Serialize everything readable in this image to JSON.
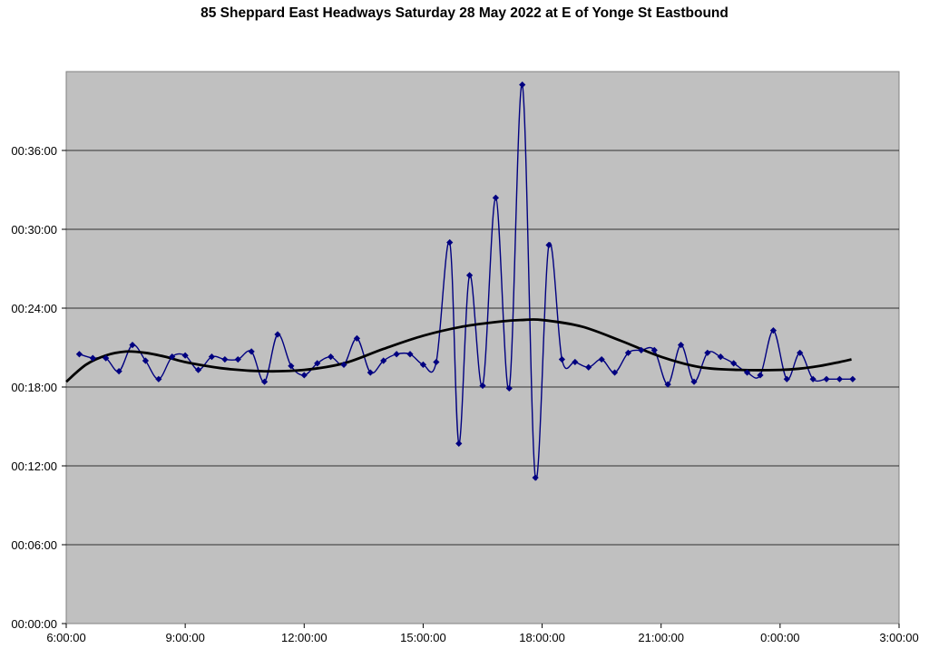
{
  "chart_data": {
    "type": "line",
    "title": "85 Sheppard East Headways Saturday 28 May 2022 at E of Yonge St Eastbound",
    "xlabel": "",
    "ylabel": "",
    "x_unit": "hours of day (24h clock; values above 24 are after midnight)",
    "y_unit": "minutes",
    "xlim": [
      6,
      27
    ],
    "ylim": [
      0,
      42
    ],
    "x_tick_labels": [
      "6:00:00",
      "9:00:00",
      "12:00:00",
      "15:00:00",
      "18:00:00",
      "21:00:00",
      "0:00:00",
      "3:00:00"
    ],
    "y_tick_labels": [
      "00:00:00",
      "00:06:00",
      "00:12:00",
      "00:18:00",
      "00:24:00",
      "00:30:00",
      "00:36:00"
    ],
    "grid": "horizontal",
    "legend": "none",
    "colors": {
      "series": "#000080",
      "trend": "#000000",
      "plot_background": "#c0c0c0"
    },
    "series": [
      {
        "x": [
          6.33,
          6.67,
          7.0,
          7.33,
          7.67,
          8.0,
          8.33,
          8.67,
          9.0,
          9.33,
          9.67,
          10.0,
          10.33,
          10.67,
          11.0,
          11.33,
          11.67,
          12.0,
          12.33,
          12.67,
          13.0,
          13.33,
          13.67,
          14.0,
          14.33,
          14.67,
          15.0,
          15.33,
          15.67,
          15.9,
          16.17,
          16.5,
          16.83,
          17.17,
          17.5,
          17.83,
          18.17,
          18.5,
          18.83,
          19.17,
          19.5,
          19.83,
          20.17,
          20.5,
          20.83,
          21.17,
          21.5,
          21.83,
          22.17,
          22.5,
          22.83,
          23.17,
          23.5,
          23.83,
          24.17,
          24.5,
          24.83,
          25.17,
          25.5,
          25.83
        ],
        "values": [
          20.5,
          20.2,
          20.2,
          19.2,
          21.2,
          20.0,
          18.6,
          20.3,
          20.4,
          19.3,
          20.3,
          20.1,
          20.1,
          20.7,
          18.4,
          22.0,
          19.6,
          18.9,
          19.8,
          20.3,
          19.7,
          21.7,
          19.1,
          20.0,
          20.5,
          20.5,
          19.7,
          19.9,
          29.0,
          13.7,
          26.5,
          18.1,
          32.4,
          17.9,
          41.0,
          11.1,
          28.8,
          20.1,
          19.9,
          19.5,
          20.1,
          19.1,
          20.6,
          20.8,
          20.8,
          18.2,
          21.2,
          18.4,
          20.6,
          20.3,
          19.8,
          19.1,
          18.9,
          22.3,
          18.6,
          20.6,
          18.6,
          18.6,
          18.6,
          18.6
        ]
      }
    ],
    "trendline": {
      "x": [
        6.0,
        6.5,
        7.0,
        7.5,
        8.0,
        8.5,
        9.0,
        10.0,
        11.0,
        12.0,
        13.0,
        14.0,
        15.0,
        16.0,
        17.0,
        17.5,
        18.0,
        19.0,
        20.0,
        21.0,
        22.0,
        23.0,
        24.0,
        24.5,
        25.0,
        25.5,
        25.8
      ],
      "values": [
        18.4,
        19.7,
        20.4,
        20.7,
        20.6,
        20.3,
        19.9,
        19.4,
        19.2,
        19.3,
        19.8,
        20.9,
        21.9,
        22.6,
        23.0,
        23.1,
        23.1,
        22.6,
        21.5,
        20.3,
        19.5,
        19.3,
        19.3,
        19.4,
        19.6,
        19.9,
        20.1
      ]
    }
  }
}
